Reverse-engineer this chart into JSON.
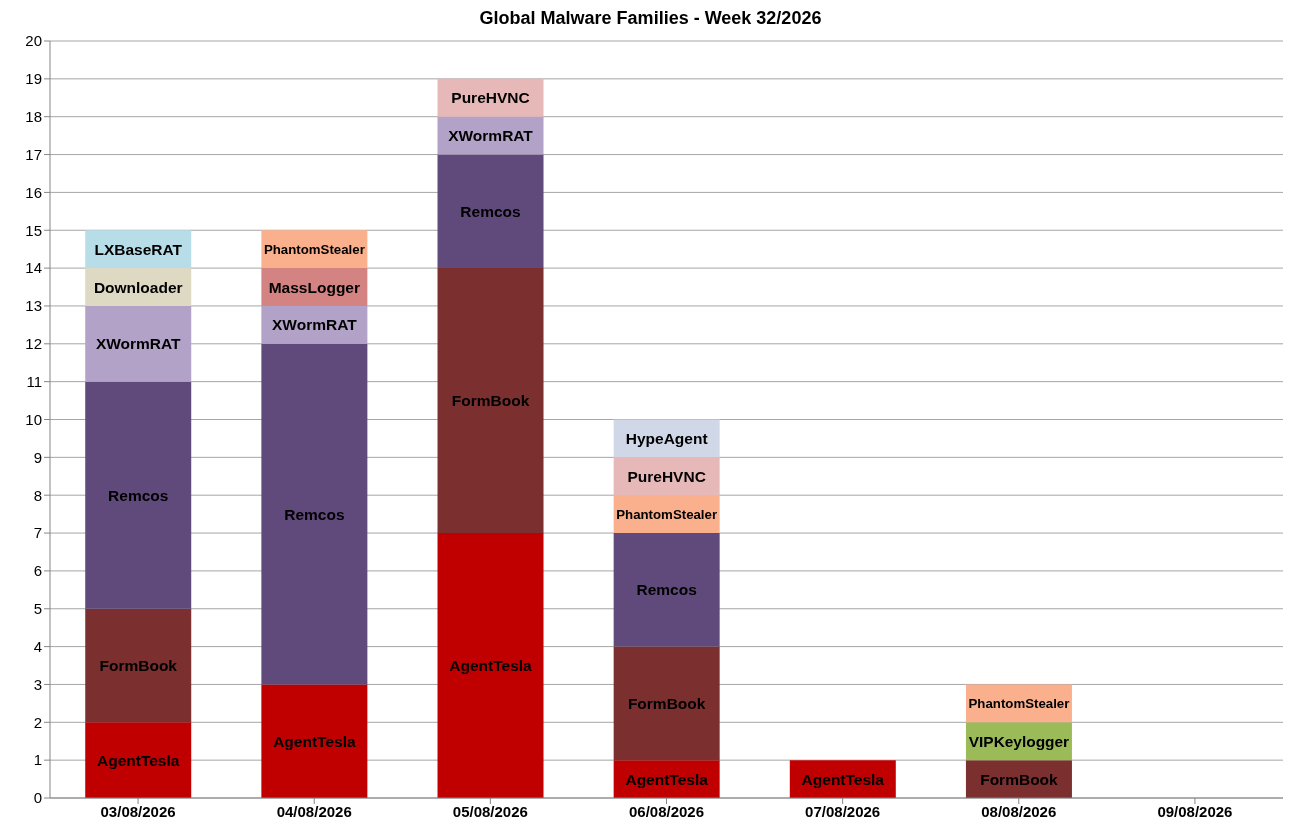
{
  "chart_data": {
    "type": "bar",
    "title": "Global Malware Families - Week 32/2026",
    "stacked": true,
    "grid": "y",
    "categories": [
      "03/08/2026",
      "04/08/2026",
      "05/08/2026",
      "06/08/2026",
      "07/08/2026",
      "08/08/2026",
      "09/08/2026"
    ],
    "ylim": [
      0,
      20
    ],
    "yticks": [
      0,
      1,
      2,
      3,
      4,
      5,
      6,
      7,
      8,
      9,
      10,
      11,
      12,
      13,
      14,
      15,
      16,
      17,
      18,
      19,
      20
    ],
    "series": [
      {
        "name": "AgentTesla",
        "color": "#c00000",
        "values": [
          2,
          3,
          7,
          1,
          1,
          null,
          null
        ]
      },
      {
        "name": "FormBook",
        "color": "#7b2f2f",
        "values": [
          3,
          null,
          7,
          3,
          null,
          1,
          null
        ]
      },
      {
        "name": "Remcos",
        "color": "#604a7b",
        "values": [
          6,
          9,
          3,
          3,
          null,
          null,
          null
        ]
      },
      {
        "name": "XWormRAT",
        "color": "#b2a2c7",
        "values": [
          2,
          1,
          1,
          null,
          null,
          null,
          null
        ]
      },
      {
        "name": "Downloader",
        "color": "#ddd9c3",
        "values": [
          1,
          null,
          null,
          null,
          null,
          null,
          null
        ]
      },
      {
        "name": "LXBaseRAT",
        "color": "#b7dde8",
        "values": [
          1,
          null,
          null,
          null,
          null,
          null,
          null
        ]
      },
      {
        "name": "MassLogger",
        "color": "#d48383",
        "values": [
          null,
          1,
          null,
          null,
          null,
          null,
          null
        ]
      },
      {
        "name": "VIPKeylogger",
        "color": "#9bbb59",
        "values": [
          null,
          null,
          null,
          null,
          null,
          1,
          null
        ]
      },
      {
        "name": "PhantomStealer",
        "color": "#fab08c",
        "values": [
          null,
          1,
          null,
          1,
          null,
          1,
          null
        ]
      },
      {
        "name": "PureHVNC",
        "color": "#e6b9b8",
        "values": [
          null,
          null,
          1,
          1,
          null,
          null,
          null
        ]
      },
      {
        "name": "HypeAgent",
        "color": "#d0d8e8",
        "values": [
          null,
          null,
          null,
          1,
          null,
          null,
          null
        ]
      }
    ]
  }
}
